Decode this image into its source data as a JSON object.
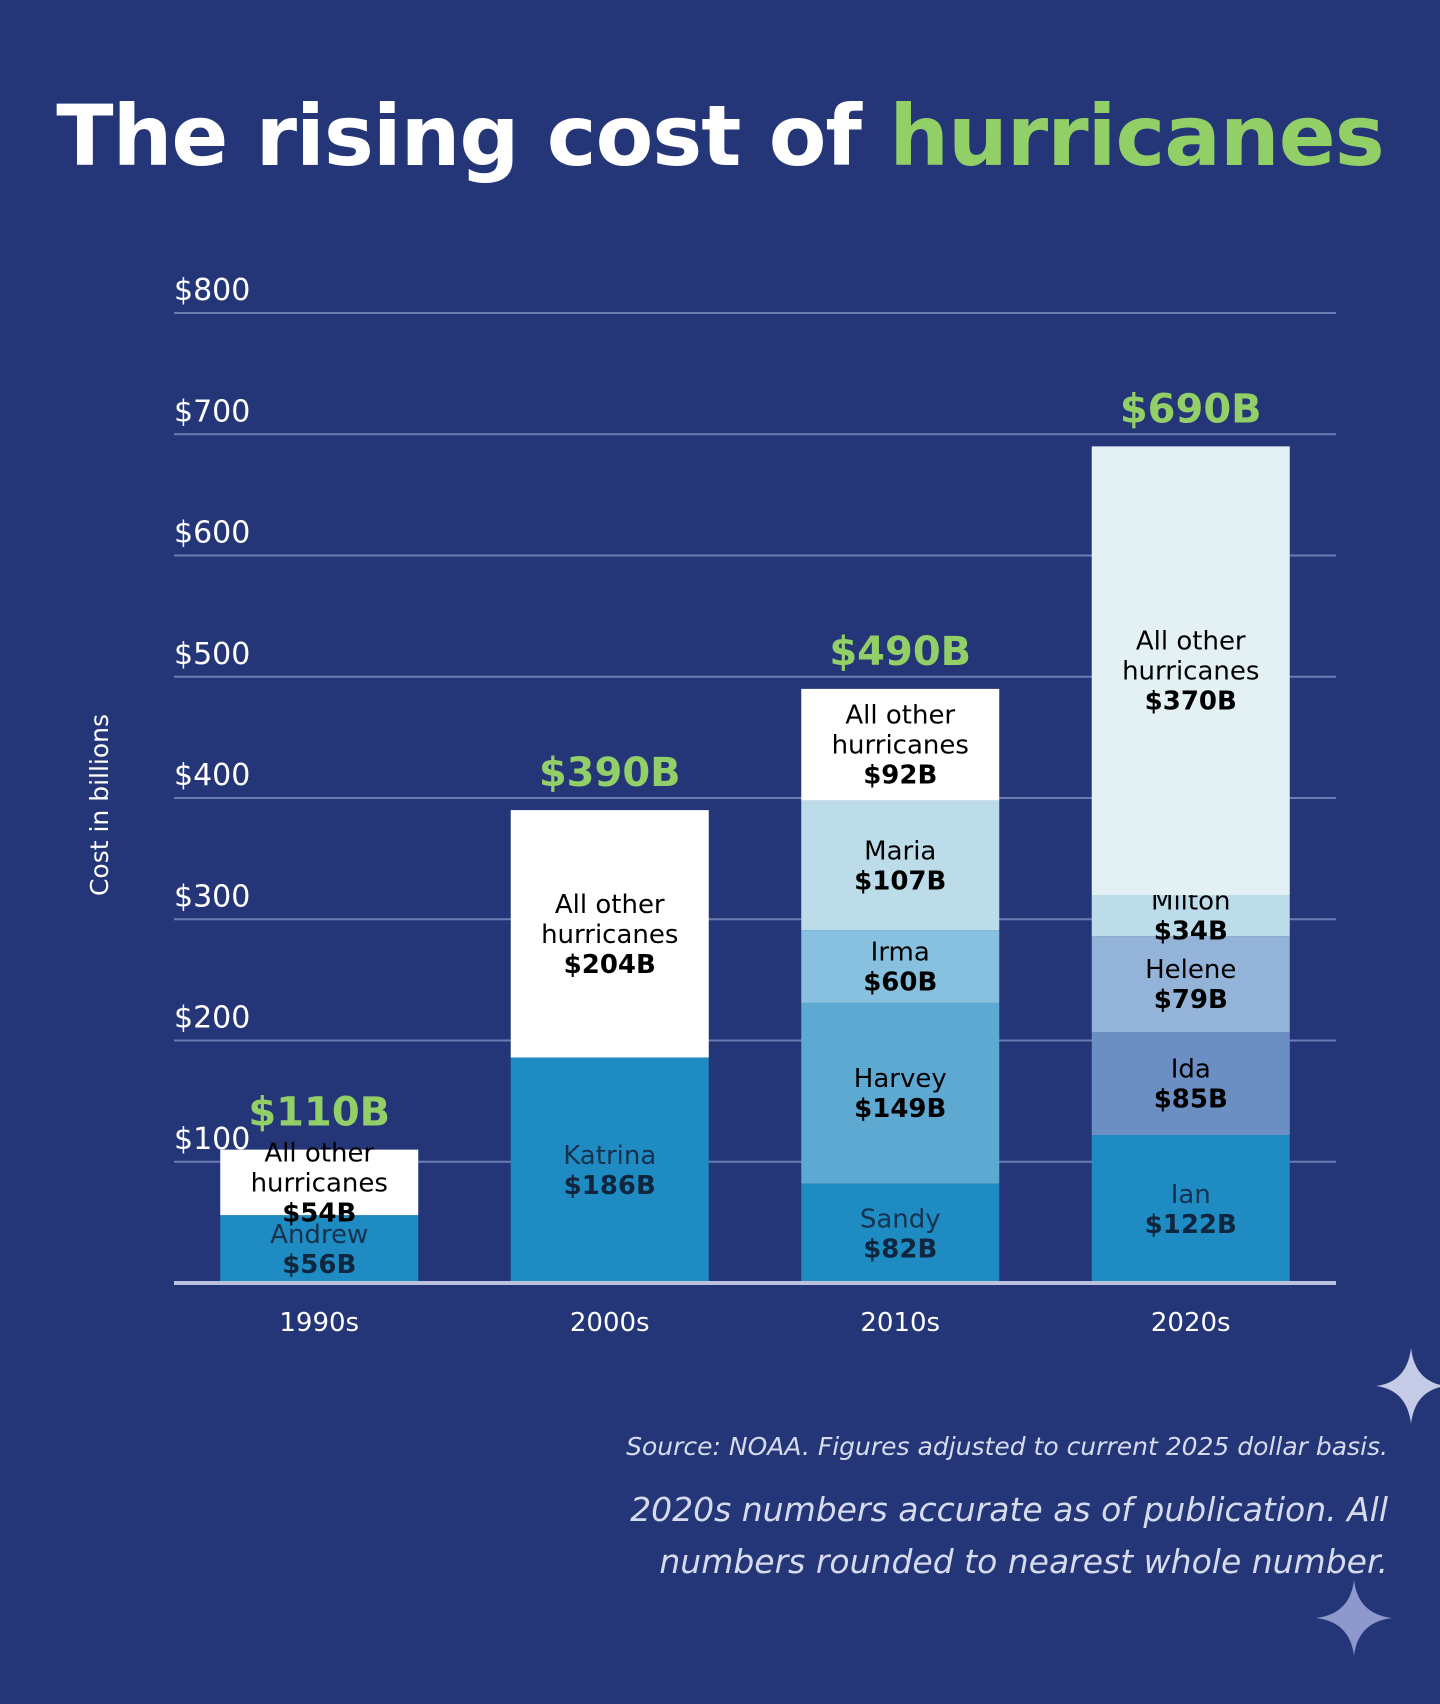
{
  "title": {
    "prefix": "The rising cost of",
    "highlight": "hurricanes"
  },
  "footnotes": {
    "source": "Source: NOAA. Figures adjusted to current 2025 dollar basis.",
    "note": "2020s numbers accurate as of publication. All numbers rounded to nearest whole number."
  },
  "colors": {
    "background": "#243678",
    "accent": "#93cf67",
    "gridline": "#6d7bb3",
    "axis": "#b9c1dd"
  },
  "decorations": [
    "sparkle-icon",
    "sparkle-icon"
  ],
  "chart_data": {
    "type": "bar",
    "stacked": true,
    "ylabel": "Cost in billions",
    "ylim": [
      0,
      800
    ],
    "yticks": [
      100,
      200,
      300,
      400,
      500,
      600,
      700,
      800
    ],
    "ytick_labels": [
      "$100",
      "$200",
      "$300",
      "$400",
      "$500",
      "$600",
      "$700",
      "$800"
    ],
    "grid": true,
    "categories": [
      "1990s",
      "2000s",
      "2010s",
      "2020s"
    ],
    "bars": [
      {
        "category": "1990s",
        "total_label": "$110B",
        "segments": [
          {
            "name": "Andrew",
            "value": 56,
            "label": "$56B",
            "color": "#1e8cc3"
          },
          {
            "name": "All other hurricanes",
            "value": 54,
            "label": "$54B",
            "color": "#ffffff"
          }
        ]
      },
      {
        "category": "2000s",
        "total_label": "$390B",
        "segments": [
          {
            "name": "Katrina",
            "value": 186,
            "label": "$186B",
            "color": "#1e8cc3"
          },
          {
            "name": "All other hurricanes",
            "value": 204,
            "label": "$204B",
            "color": "#ffffff"
          }
        ]
      },
      {
        "category": "2010s",
        "total_label": "$490B",
        "segments": [
          {
            "name": "Sandy",
            "value": 82,
            "label": "$82B",
            "color": "#1e8cc3"
          },
          {
            "name": "Harvey",
            "value": 149,
            "label": "$149B",
            "color": "#5ea9d1"
          },
          {
            "name": "Irma",
            "value": 60,
            "label": "$60B",
            "color": "#87c1df"
          },
          {
            "name": "Maria",
            "value": 107,
            "label": "$107B",
            "color": "#bcdcea"
          },
          {
            "name": "All other hurricanes",
            "value": 92,
            "label": "$92B",
            "color": "#ffffff"
          }
        ]
      },
      {
        "category": "2020s",
        "total_label": "$690B",
        "segments": [
          {
            "name": "Ian",
            "value": 122,
            "label": "$122B",
            "color": "#1e8cc3"
          },
          {
            "name": "Ida",
            "value": 85,
            "label": "$85B",
            "color": "#6b8fc2"
          },
          {
            "name": "Helene",
            "value": 79,
            "label": "$79B",
            "color": "#93b4d8"
          },
          {
            "name": "Milton",
            "value": 34,
            "label": "$34B",
            "color": "#bcdcea"
          },
          {
            "name": "All other hurricanes",
            "value": 370,
            "label": "$370B",
            "color": "#e3f0f4"
          }
        ]
      }
    ]
  }
}
